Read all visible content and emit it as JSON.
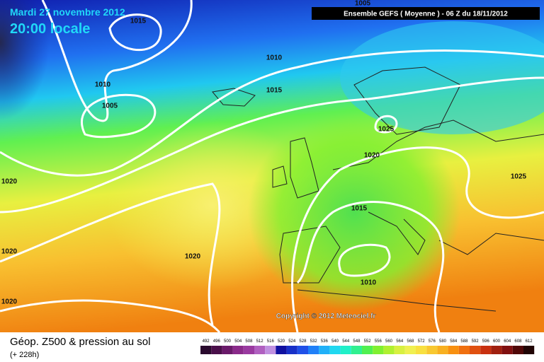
{
  "header": {
    "date": "Mardi 27 novembre 2012",
    "time": "20:00 locale",
    "run": "Ensemble GEFS ( Moyenne )  -  06 Z du 18/11/2012"
  },
  "isobars": [
    {
      "label": "1005"
    },
    {
      "label": "1015"
    },
    {
      "label": "1010"
    },
    {
      "label": "1005"
    },
    {
      "label": "1010"
    },
    {
      "label": "1015"
    },
    {
      "label": "1025"
    },
    {
      "label": "1020"
    },
    {
      "label": "1025"
    },
    {
      "label": "1015"
    },
    {
      "label": "1020"
    },
    {
      "label": "1020"
    },
    {
      "label": "1020"
    },
    {
      "label": "1010"
    },
    {
      "label": "1020"
    }
  ],
  "copyright": "Copyright © 2012 Meteociel.fr",
  "footer": {
    "title": "Géop. Z500 & pression au sol",
    "lead": "(+ 228h)"
  },
  "legend": {
    "items": [
      {
        "label": "492",
        "color": "#2a0a2e"
      },
      {
        "label": "496",
        "color": "#4a0f4a"
      },
      {
        "label": "500",
        "color": "#6a1a6a"
      },
      {
        "label": "504",
        "color": "#8a2a8a"
      },
      {
        "label": "508",
        "color": "#9a3aa0"
      },
      {
        "label": "512",
        "color": "#b060c0"
      },
      {
        "label": "516",
        "color": "#c090e0"
      },
      {
        "label": "520",
        "color": "#1010a0"
      },
      {
        "label": "524",
        "color": "#1830c8"
      },
      {
        "label": "528",
        "color": "#2050e8"
      },
      {
        "label": "532",
        "color": "#2080f8"
      },
      {
        "label": "536",
        "color": "#20b0f8"
      },
      {
        "label": "540",
        "color": "#20d8f0"
      },
      {
        "label": "544",
        "color": "#20f0c8"
      },
      {
        "label": "548",
        "color": "#30f090"
      },
      {
        "label": "552",
        "color": "#50f050"
      },
      {
        "label": "556",
        "color": "#80f030"
      },
      {
        "label": "560",
        "color": "#b0f030"
      },
      {
        "label": "564",
        "color": "#d8f040"
      },
      {
        "label": "568",
        "color": "#f0f050"
      },
      {
        "label": "572",
        "color": "#f8e040"
      },
      {
        "label": "576",
        "color": "#f8c830"
      },
      {
        "label": "580",
        "color": "#f8b020"
      },
      {
        "label": "584",
        "color": "#f89010"
      },
      {
        "label": "588",
        "color": "#f07010"
      },
      {
        "label": "592",
        "color": "#e05010"
      },
      {
        "label": "596",
        "color": "#c83010"
      },
      {
        "label": "600",
        "color": "#a02010"
      },
      {
        "label": "604",
        "color": "#801010"
      },
      {
        "label": "608",
        "color": "#500808"
      },
      {
        "label": "612",
        "color": "#200404"
      }
    ]
  }
}
